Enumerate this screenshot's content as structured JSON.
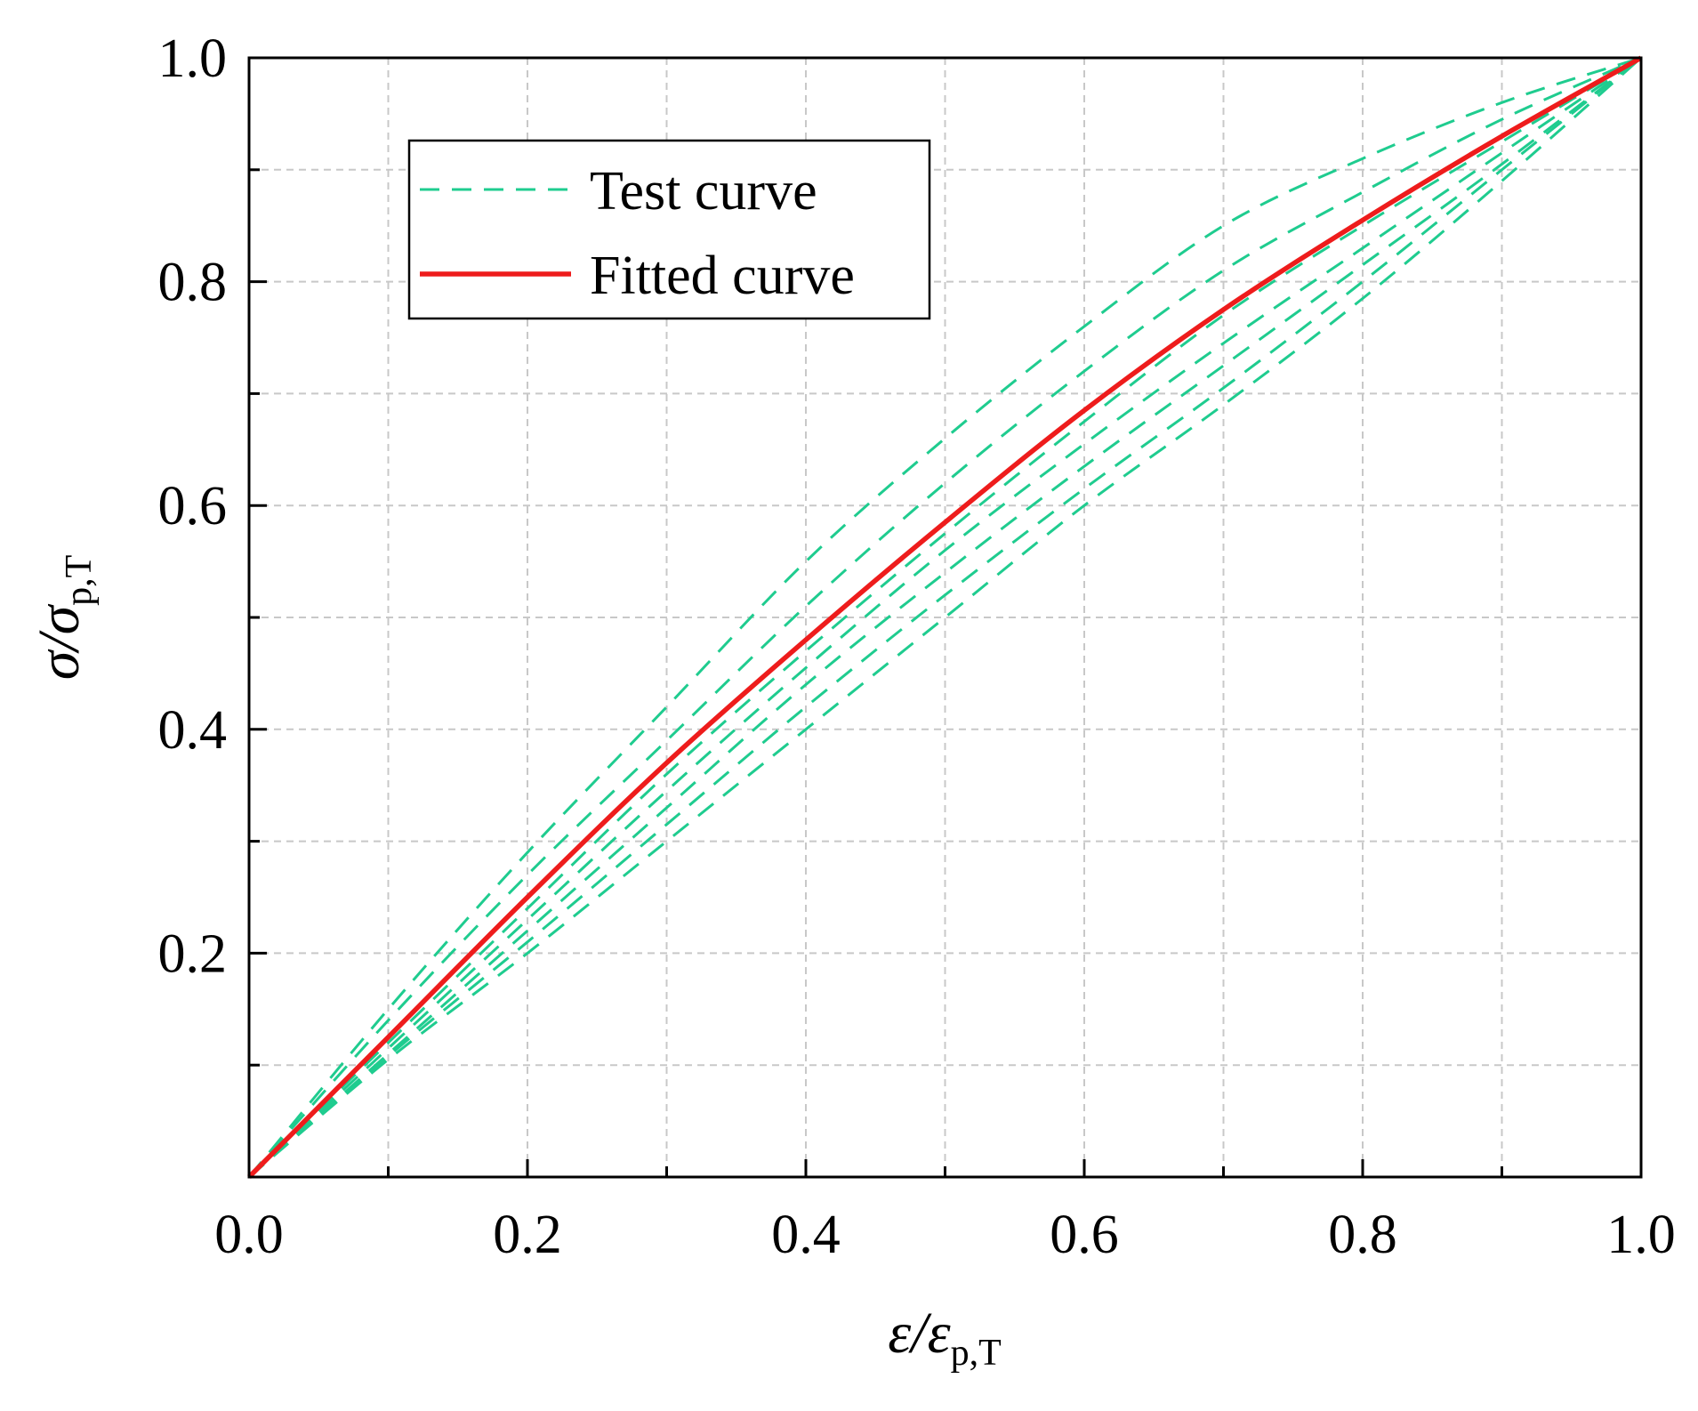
{
  "chart_data": {
    "type": "line",
    "title": "",
    "xlabel": "ε/ε",
    "xlabel_subscript": "p,T",
    "ylabel": "σ/σ",
    "ylabel_subscript": "p,T",
    "xlim": [
      0,
      1.0
    ],
    "ylim": [
      0,
      1.0
    ],
    "x_ticks": [
      0.0,
      0.2,
      0.4,
      0.6,
      0.8,
      1.0
    ],
    "x_tick_labels": [
      "0.0",
      "0.2",
      "0.4",
      "0.6",
      "0.8",
      "1.0"
    ],
    "y_ticks": [
      0.2,
      0.4,
      0.6,
      0.8,
      1.0
    ],
    "y_tick_labels": [
      "0.2",
      "0.4",
      "0.6",
      "0.8",
      "1.0"
    ],
    "grid": true,
    "legend_position": "top-left",
    "legend": [
      {
        "label": "Test curve",
        "style": "dashed",
        "color": "#1fcc8f"
      },
      {
        "label": "Fitted curve",
        "style": "solid",
        "color": "#ee1c1c"
      }
    ],
    "series": [
      {
        "name": "Fitted curve",
        "color": "#ee1c1c",
        "style": "solid",
        "x": [
          0.0,
          0.1,
          0.2,
          0.3,
          0.4,
          0.5,
          0.6,
          0.7,
          0.8,
          0.9,
          1.0
        ],
        "y": [
          0.0,
          0.125,
          0.25,
          0.37,
          0.48,
          0.585,
          0.685,
          0.775,
          0.855,
          0.93,
          1.0
        ]
      },
      {
        "name": "Test curve",
        "color": "#1fcc8f",
        "style": "dashed",
        "x": [
          0.0,
          0.1,
          0.2,
          0.3,
          0.4,
          0.5,
          0.6,
          0.7,
          0.8,
          0.9,
          1.0
        ],
        "y": [
          0.0,
          0.15,
          0.29,
          0.42,
          0.55,
          0.66,
          0.76,
          0.85,
          0.91,
          0.96,
          1.0
        ]
      },
      {
        "name": "Test curve",
        "color": "#1fcc8f",
        "style": "dashed",
        "x": [
          0.0,
          0.1,
          0.2,
          0.3,
          0.4,
          0.5,
          0.6,
          0.7,
          0.8,
          0.9,
          1.0
        ],
        "y": [
          0.0,
          0.14,
          0.27,
          0.39,
          0.51,
          0.62,
          0.72,
          0.81,
          0.88,
          0.945,
          1.0
        ]
      },
      {
        "name": "Test curve",
        "color": "#1fcc8f",
        "style": "dashed",
        "x": [
          0.0,
          0.1,
          0.2,
          0.3,
          0.4,
          0.5,
          0.6,
          0.7,
          0.8,
          0.9,
          1.0
        ],
        "y": [
          0.0,
          0.12,
          0.24,
          0.36,
          0.47,
          0.575,
          0.675,
          0.77,
          0.85,
          0.925,
          1.0
        ]
      },
      {
        "name": "Test curve",
        "color": "#1fcc8f",
        "style": "dashed",
        "x": [
          0.0,
          0.1,
          0.2,
          0.3,
          0.4,
          0.5,
          0.6,
          0.7,
          0.8,
          0.9,
          1.0
        ],
        "y": [
          0.0,
          0.115,
          0.23,
          0.345,
          0.455,
          0.56,
          0.655,
          0.745,
          0.83,
          0.915,
          1.0
        ]
      },
      {
        "name": "Test curve",
        "color": "#1fcc8f",
        "style": "dashed",
        "x": [
          0.0,
          0.1,
          0.2,
          0.3,
          0.4,
          0.5,
          0.6,
          0.7,
          0.8,
          0.9,
          1.0
        ],
        "y": [
          0.0,
          0.11,
          0.22,
          0.33,
          0.44,
          0.54,
          0.635,
          0.725,
          0.815,
          0.905,
          1.0
        ]
      },
      {
        "name": "Test curve",
        "color": "#1fcc8f",
        "style": "dashed",
        "x": [
          0.0,
          0.1,
          0.2,
          0.3,
          0.4,
          0.5,
          0.6,
          0.7,
          0.8,
          0.9,
          1.0
        ],
        "y": [
          0.0,
          0.108,
          0.21,
          0.315,
          0.42,
          0.52,
          0.615,
          0.705,
          0.8,
          0.9,
          1.0
        ]
      },
      {
        "name": "Test curve",
        "color": "#1fcc8f",
        "style": "dashed",
        "x": [
          0.0,
          0.1,
          0.2,
          0.3,
          0.4,
          0.5,
          0.6,
          0.7,
          0.8,
          0.9,
          1.0
        ],
        "y": [
          0.0,
          0.105,
          0.2,
          0.3,
          0.4,
          0.5,
          0.6,
          0.69,
          0.785,
          0.89,
          1.0
        ]
      }
    ]
  }
}
